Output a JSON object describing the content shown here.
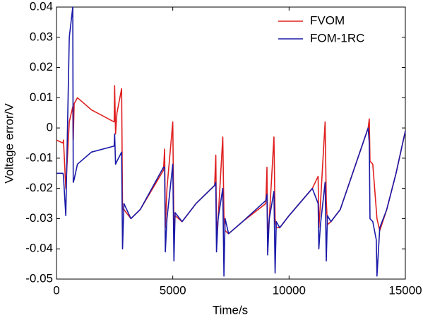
{
  "chart_data": {
    "type": "line",
    "xlabel": "Time/s",
    "ylabel": "Voltage error/V",
    "x": [
      0,
      280,
      300,
      400,
      550,
      700,
      720,
      760,
      900,
      1500,
      2480,
      2500,
      2540,
      2600,
      2800,
      2840,
      2900,
      3200,
      3600,
      4600,
      4650,
      4680,
      4750,
      5000,
      5050,
      5100,
      5400,
      6000,
      6800,
      6850,
      6880,
      6950,
      7150,
      7200,
      7250,
      7400,
      8000,
      9000,
      9050,
      9080,
      9150,
      9350,
      9400,
      9450,
      9600,
      10000,
      11000,
      11250,
      11280,
      11350,
      11550,
      11600,
      11650,
      11800,
      12200,
      13400,
      13450,
      13480,
      13600,
      13750,
      13780,
      13900,
      14200,
      14600,
      15000
    ],
    "series": [
      {
        "name": "FVOM",
        "color": "#e02020",
        "values": [
          -0.004,
          -0.005,
          -0.004,
          -0.02,
          0.002,
          0.007,
          -0.004,
          0.008,
          0.01,
          0.006,
          0.002,
          0.014,
          -0.002,
          0.005,
          0.013,
          -0.027,
          -0.027,
          -0.03,
          -0.027,
          -0.014,
          -0.007,
          -0.033,
          -0.02,
          0.002,
          -0.035,
          -0.029,
          -0.031,
          -0.025,
          -0.019,
          -0.009,
          -0.034,
          -0.03,
          -0.003,
          -0.029,
          -0.034,
          -0.035,
          -0.031,
          -0.025,
          -0.013,
          -0.036,
          -0.03,
          -0.003,
          -0.03,
          -0.033,
          -0.033,
          -0.029,
          -0.02,
          -0.016,
          -0.033,
          -0.025,
          0.002,
          -0.024,
          -0.032,
          -0.031,
          -0.027,
          0,
          0.003,
          -0.011,
          -0.012,
          -0.027,
          -0.03,
          -0.034,
          -0.027,
          -0.015,
          -0.001
        ]
      },
      {
        "name": "FOM-1RC",
        "color": "#1a1aa8",
        "values": [
          -0.015,
          -0.015,
          -0.016,
          -0.029,
          0.03,
          0.04,
          -0.018,
          -0.017,
          -0.012,
          -0.008,
          -0.006,
          -0.002,
          -0.012,
          -0.011,
          -0.008,
          -0.04,
          -0.025,
          -0.03,
          -0.027,
          -0.013,
          -0.013,
          -0.041,
          -0.03,
          -0.012,
          -0.044,
          -0.028,
          -0.031,
          -0.025,
          -0.019,
          -0.018,
          -0.041,
          -0.03,
          -0.02,
          -0.049,
          -0.03,
          -0.035,
          -0.031,
          -0.024,
          -0.022,
          -0.042,
          -0.03,
          -0.021,
          -0.048,
          -0.031,
          -0.033,
          -0.029,
          -0.02,
          -0.025,
          -0.04,
          -0.032,
          -0.018,
          -0.044,
          -0.029,
          -0.031,
          -0.027,
          0,
          -0.005,
          -0.03,
          -0.031,
          -0.037,
          -0.049,
          -0.033,
          -0.027,
          -0.015,
          -0.001
        ]
      }
    ],
    "xlim": [
      0,
      15000
    ],
    "xticks": [
      0,
      5000,
      10000,
      15000
    ],
    "ylim": [
      -0.05,
      0.04
    ],
    "yticks": [
      -0.05,
      -0.04,
      -0.03,
      -0.02,
      -0.01,
      0,
      0.01,
      0.02,
      0.03,
      0.04
    ],
    "legend": "top-right"
  }
}
